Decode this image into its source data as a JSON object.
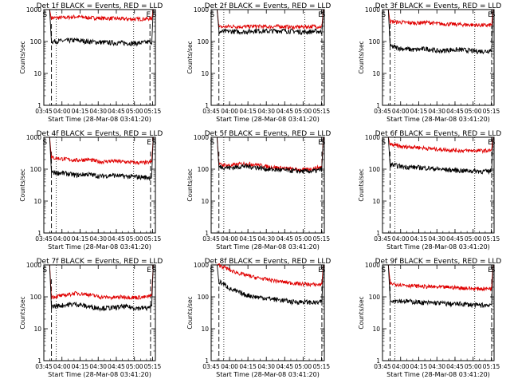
{
  "figure": {
    "type": "line",
    "start_time_label": "Start Time (28-Mar-08 03:41:20)",
    "ylabel": "Counts/sec",
    "yscale": "log",
    "ylim": [
      1,
      1000
    ],
    "y_ticks": [
      "1",
      "10",
      "100",
      "1000"
    ],
    "x_ticks": [
      "03:45",
      "04:00",
      "04:15",
      "04:30",
      "04:45",
      "05:00",
      "05:15"
    ],
    "x_tick_minutes": [
      3.67,
      18.67,
      33.67,
      48.67,
      63.67,
      78.67,
      93.67
    ],
    "xlim_minutes": [
      3.67,
      96.0
    ],
    "colors": {
      "events": "#000000",
      "lld": "#e00000",
      "axes": "#000000"
    },
    "series_legend": "BLACK = Events, RED = LLD",
    "markers": [
      "S",
      "E",
      "S"
    ]
  },
  "chart_data": [
    {
      "title": "Det 1f BLACK = Events, RED = LLD",
      "type": "line",
      "events": {
        "x": [
          10,
          20,
          30,
          40,
          50,
          60,
          70,
          80,
          90,
          93
        ],
        "y": [
          100,
          105,
          110,
          100,
          95,
          92,
          90,
          88,
          95,
          100
        ]
      },
      "lld": {
        "x": [
          10,
          20,
          30,
          40,
          50,
          60,
          70,
          80,
          90,
          93
        ],
        "y": [
          550,
          560,
          600,
          560,
          540,
          530,
          510,
          500,
          520,
          520
        ]
      },
      "dashed_x": [
        10,
        91.5
      ],
      "dotted_x": [
        14,
        78
      ]
    },
    {
      "title": "Det 2f BLACK = Events, RED = LLD",
      "type": "line",
      "events": {
        "x": [
          10,
          20,
          30,
          40,
          50,
          60,
          70,
          80,
          90,
          94
        ],
        "y": [
          200,
          210,
          200,
          220,
          210,
          220,
          210,
          200,
          210,
          200
        ]
      },
      "lld": {
        "x": [
          10,
          20,
          30,
          40,
          50,
          60,
          70,
          80,
          90,
          94
        ],
        "y": [
          280,
          300,
          290,
          300,
          290,
          300,
          280,
          290,
          300,
          280
        ]
      },
      "dashed_x": [
        10,
        94
      ],
      "dotted_x": [
        14,
        80
      ]
    },
    {
      "title": "Det 3f BLACK = Events, RED = LLD",
      "type": "line",
      "events": {
        "x": [
          10,
          20,
          30,
          40,
          50,
          60,
          70,
          80,
          90,
          94
        ],
        "y": [
          70,
          60,
          55,
          60,
          50,
          55,
          55,
          50,
          50,
          55
        ]
      },
      "lld": {
        "x": [
          10,
          20,
          30,
          40,
          50,
          60,
          70,
          80,
          90,
          94
        ],
        "y": [
          420,
          400,
          380,
          400,
          360,
          350,
          340,
          330,
          320,
          330
        ]
      },
      "dashed_x": [
        10,
        94
      ],
      "dotted_x": [
        14,
        80
      ]
    },
    {
      "title": "Det 4f BLACK = Events, RED = LLD",
      "type": "line",
      "events": {
        "x": [
          10,
          20,
          30,
          40,
          50,
          60,
          70,
          80,
          90,
          93
        ],
        "y": [
          80,
          75,
          65,
          70,
          60,
          65,
          60,
          58,
          55,
          58
        ]
      },
      "lld": {
        "x": [
          10,
          20,
          30,
          40,
          50,
          60,
          70,
          80,
          90,
          93
        ],
        "y": [
          230,
          210,
          190,
          200,
          170,
          180,
          170,
          160,
          160,
          170
        ]
      },
      "dashed_x": [
        10,
        92
      ],
      "dotted_x": [
        14,
        78
      ]
    },
    {
      "title": "Det 5f BLACK = Events, RED = LLD",
      "type": "line",
      "events": {
        "x": [
          10,
          20,
          30,
          40,
          50,
          60,
          70,
          80,
          90,
          94
        ],
        "y": [
          120,
          110,
          125,
          115,
          100,
          95,
          90,
          85,
          90,
          100
        ]
      },
      "lld": {
        "x": [
          10,
          20,
          30,
          40,
          50,
          60,
          70,
          80,
          90,
          94
        ],
        "y": [
          140,
          130,
          150,
          140,
          120,
          110,
          100,
          95,
          110,
          120
        ]
      },
      "dashed_x": [
        10,
        94
      ],
      "dotted_x": [
        14,
        80
      ]
    },
    {
      "title": "Det 6f BLACK = Events, RED = LLD",
      "type": "line",
      "events": {
        "x": [
          10,
          20,
          30,
          40,
          50,
          60,
          70,
          80,
          90,
          94
        ],
        "y": [
          140,
          120,
          115,
          110,
          100,
          95,
          90,
          88,
          85,
          90
        ]
      },
      "lld": {
        "x": [
          10,
          20,
          30,
          40,
          50,
          60,
          70,
          80,
          90,
          94
        ],
        "y": [
          600,
          500,
          500,
          450,
          420,
          400,
          380,
          380,
          380,
          390
        ]
      },
      "dashed_x": [
        10,
        94
      ],
      "dotted_x": [
        14,
        80
      ]
    },
    {
      "title": "Det 7f BLACK = Events, RED = LLD",
      "type": "line",
      "events": {
        "x": [
          10,
          20,
          30,
          40,
          50,
          60,
          70,
          80,
          90,
          93
        ],
        "y": [
          50,
          55,
          60,
          50,
          45,
          45,
          50,
          45,
          45,
          50
        ]
      },
      "lld": {
        "x": [
          10,
          20,
          30,
          40,
          50,
          60,
          70,
          80,
          90,
          93
        ],
        "y": [
          100,
          110,
          130,
          120,
          100,
          95,
          100,
          95,
          100,
          110
        ]
      },
      "dashed_x": [
        10,
        92
      ],
      "dotted_x": [
        14,
        78
      ]
    },
    {
      "title": "Det 8f BLACK = Events, RED = LLD",
      "type": "line",
      "events": {
        "x": [
          10,
          20,
          30,
          40,
          50,
          60,
          70,
          80,
          90,
          94
        ],
        "y": [
          300,
          170,
          120,
          100,
          90,
          80,
          70,
          70,
          65,
          70
        ]
      },
      "lld": {
        "x": [
          10,
          20,
          30,
          40,
          50,
          60,
          70,
          80,
          90,
          94
        ],
        "y": [
          1000,
          650,
          500,
          400,
          350,
          300,
          270,
          250,
          240,
          250
        ]
      },
      "dashed_x": [
        10,
        94
      ],
      "dotted_x": [
        14,
        80
      ]
    },
    {
      "title": "Det 9f BLACK = Events, RED = LLD",
      "type": "line",
      "events": {
        "x": [
          10,
          20,
          30,
          40,
          50,
          60,
          70,
          80,
          90,
          94
        ],
        "y": [
          80,
          75,
          70,
          65,
          65,
          60,
          60,
          55,
          55,
          58
        ]
      },
      "lld": {
        "x": [
          10,
          20,
          30,
          40,
          50,
          60,
          70,
          80,
          90,
          94
        ],
        "y": [
          260,
          240,
          220,
          210,
          200,
          200,
          190,
          180,
          180,
          190
        ]
      },
      "dashed_x": [
        10,
        94
      ],
      "dotted_x": [
        14,
        80
      ]
    }
  ]
}
